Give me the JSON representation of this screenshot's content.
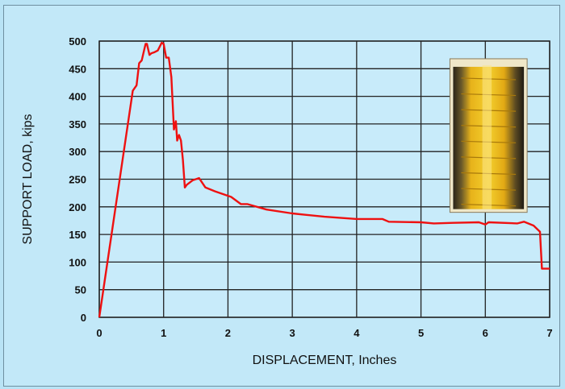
{
  "chart_data": {
    "type": "line",
    "title": "",
    "xlabel": "DISPLACEMENT, Inches",
    "ylabel": "SUPPORT LOAD, kips",
    "xlim": [
      0,
      7
    ],
    "ylim": [
      0,
      500
    ],
    "x_ticks": [
      0,
      1,
      2,
      3,
      4,
      5,
      6,
      7
    ],
    "y_ticks": [
      0,
      50,
      100,
      150,
      200,
      250,
      300,
      350,
      400,
      450,
      500
    ],
    "grid": true,
    "legend": "none",
    "inset": "photo of loaded support specimen (top-right)",
    "colors": {
      "series": "#ee1111",
      "background": "#c2e8f8",
      "plot_area": "#c8ebfa",
      "grid": "#222222"
    },
    "series": [
      {
        "x": [
          0,
          0.52,
          0.58,
          0.62,
          0.66,
          0.72,
          0.74,
          0.78,
          0.81,
          0.86,
          0.91,
          0.97,
          1.0,
          1.04,
          1.08,
          1.12,
          1.16,
          1.19,
          1.21,
          1.24,
          1.27,
          1.3,
          1.33,
          1.36,
          1.45,
          1.55,
          1.65,
          1.8,
          2.05,
          2.2,
          2.3,
          2.6,
          3.0,
          3.5,
          4.0,
          4.4,
          4.5,
          5.0,
          5.2,
          5.5,
          5.9,
          6.0,
          6.05,
          6.5,
          6.6,
          6.75,
          6.85,
          6.88,
          6.95,
          7.0
        ],
        "y": [
          0,
          410,
          420,
          460,
          465,
          495,
          495,
          475,
          478,
          480,
          483,
          497,
          495,
          470,
          470,
          435,
          340,
          355,
          320,
          330,
          320,
          285,
          235,
          240,
          248,
          252,
          235,
          228,
          218,
          205,
          205,
          195,
          188,
          182,
          178,
          178,
          173,
          172,
          170,
          171,
          172,
          168,
          172,
          170,
          173,
          166,
          155,
          88,
          88,
          88
        ]
      }
    ]
  }
}
